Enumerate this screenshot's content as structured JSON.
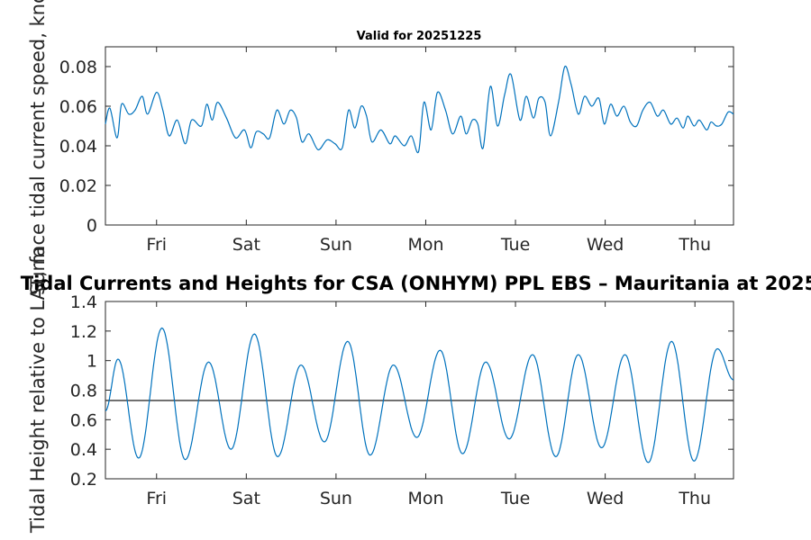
{
  "chart_data": [
    {
      "type": "line",
      "title": "Valid for 20251225",
      "ylabel": "Surface tidal current speed, knots",
      "xlabel": "",
      "x_tick_labels": [
        "Fri",
        "Sat",
        "Sun",
        "Mon",
        "Tue",
        "Wed",
        "Thu"
      ],
      "x_tick_positions": [
        1,
        2,
        3,
        4,
        5,
        6,
        7
      ],
      "xlim": [
        0.43,
        7.43
      ],
      "ylim": [
        0,
        0.09
      ],
      "y_ticks": [
        0,
        0.02,
        0.04,
        0.06,
        0.08
      ],
      "y_tick_labels": [
        "0",
        "0.02",
        "0.04",
        "0.06",
        "0.08"
      ],
      "series": [
        {
          "name": "current speed",
          "color": "#0072BD",
          "x": [
            0.43,
            0.48,
            0.56,
            0.61,
            0.69,
            0.76,
            0.84,
            0.9,
            1.0,
            1.07,
            1.14,
            1.23,
            1.32,
            1.39,
            1.5,
            1.56,
            1.62,
            1.68,
            1.78,
            1.88,
            1.98,
            2.05,
            2.11,
            2.19,
            2.26,
            2.34,
            2.42,
            2.49,
            2.56,
            2.62,
            2.7,
            2.8,
            2.9,
            2.99,
            3.07,
            3.14,
            3.21,
            3.28,
            3.34,
            3.4,
            3.5,
            3.6,
            3.66,
            3.76,
            3.84,
            3.92,
            3.98,
            4.06,
            4.13,
            4.22,
            4.3,
            4.39,
            4.45,
            4.52,
            4.58,
            4.64,
            4.72,
            4.8,
            4.88,
            4.95,
            5.05,
            5.12,
            5.2,
            5.26,
            5.33,
            5.39,
            5.48,
            5.55,
            5.62,
            5.7,
            5.77,
            5.85,
            5.93,
            5.99,
            6.06,
            6.13,
            6.21,
            6.28,
            6.35,
            6.42,
            6.5,
            6.58,
            6.65,
            6.73,
            6.8,
            6.87,
            6.92,
            6.99,
            7.05,
            7.13,
            7.18,
            7.24,
            7.3,
            7.37,
            7.43
          ],
          "y": [
            0.051,
            0.059,
            0.044,
            0.061,
            0.056,
            0.058,
            0.065,
            0.056,
            0.067,
            0.058,
            0.045,
            0.053,
            0.041,
            0.053,
            0.05,
            0.061,
            0.053,
            0.062,
            0.054,
            0.044,
            0.048,
            0.039,
            0.047,
            0.046,
            0.044,
            0.058,
            0.051,
            0.058,
            0.054,
            0.042,
            0.046,
            0.038,
            0.043,
            0.041,
            0.039,
            0.058,
            0.049,
            0.06,
            0.055,
            0.042,
            0.048,
            0.041,
            0.045,
            0.04,
            0.045,
            0.037,
            0.062,
            0.048,
            0.067,
            0.058,
            0.046,
            0.055,
            0.046,
            0.053,
            0.051,
            0.039,
            0.07,
            0.05,
            0.066,
            0.076,
            0.053,
            0.065,
            0.054,
            0.064,
            0.062,
            0.045,
            0.062,
            0.08,
            0.071,
            0.056,
            0.065,
            0.06,
            0.064,
            0.051,
            0.061,
            0.055,
            0.06,
            0.052,
            0.05,
            0.058,
            0.062,
            0.055,
            0.058,
            0.051,
            0.054,
            0.049,
            0.055,
            0.05,
            0.053,
            0.048,
            0.052,
            0.05,
            0.051,
            0.057,
            0.056
          ]
        }
      ]
    },
    {
      "type": "line",
      "title": "Tidal Currents and Heights for CSA (ONHYM) PPL EBS  – Mauritania at 2025",
      "ylabel": "Tidal Height relative to LAT, m",
      "xlabel": "",
      "x_tick_labels": [
        "Fri",
        "Sat",
        "Sun",
        "Mon",
        "Tue",
        "Wed",
        "Thu"
      ],
      "x_tick_positions": [
        1,
        2,
        3,
        4,
        5,
        6,
        7
      ],
      "xlim": [
        0.43,
        7.43
      ],
      "ylim": [
        0.2,
        1.4
      ],
      "y_ticks": [
        0.2,
        0.4,
        0.6,
        0.8,
        1.0,
        1.2,
        1.4
      ],
      "y_tick_labels": [
        "0.2",
        "0.4",
        "0.6",
        "0.8",
        "1",
        "1.2",
        "1.4"
      ],
      "reference_line": {
        "value": 0.73,
        "color": "#404040"
      },
      "series": [
        {
          "name": "tidal height",
          "color": "#0072BD",
          "extrema_x": [
            0.43,
            0.57,
            0.8,
            1.06,
            1.32,
            1.58,
            1.83,
            2.09,
            2.35,
            2.61,
            2.87,
            3.13,
            3.38,
            3.64,
            3.9,
            4.16,
            4.41,
            4.67,
            4.93,
            5.19,
            5.45,
            5.7,
            5.96,
            6.22,
            6.48,
            6.74,
            6.99,
            7.25,
            7.43
          ],
          "extrema_y": [
            0.66,
            1.01,
            0.34,
            1.22,
            0.33,
            0.99,
            0.4,
            1.18,
            0.35,
            0.97,
            0.45,
            1.13,
            0.36,
            0.97,
            0.48,
            1.07,
            0.37,
            0.99,
            0.47,
            1.04,
            0.35,
            1.04,
            0.41,
            1.04,
            0.31,
            1.13,
            0.32,
            1.08,
            0.87
          ]
        }
      ]
    }
  ]
}
